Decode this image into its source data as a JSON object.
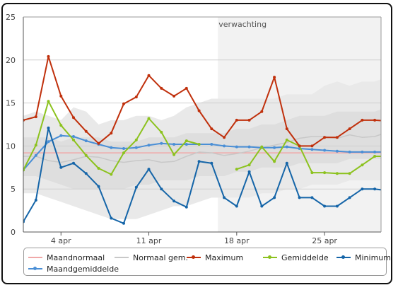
{
  "chart_data": {
    "type": "line",
    "title": "",
    "xlabel": "",
    "ylabel": "",
    "ylim": [
      0,
      25
    ],
    "yticks": [
      0,
      5,
      10,
      15,
      20,
      25
    ],
    "xlim": [
      1,
      29.5
    ],
    "xtick_labels": [
      {
        "x": 4,
        "label": "4 apr"
      },
      {
        "x": 11,
        "label": "11 apr"
      },
      {
        "x": 18,
        "label": "18 apr"
      },
      {
        "x": 25,
        "label": "25 apr"
      }
    ],
    "grid": true,
    "forecast": {
      "label": "verwachting",
      "from_x": 16.5
    },
    "x": [
      1,
      2,
      3,
      4,
      5,
      6,
      7,
      8,
      9,
      10,
      11,
      12,
      13,
      14,
      15,
      16,
      17,
      18,
      19,
      20,
      21,
      22,
      23,
      24,
      25,
      26,
      27,
      28,
      29,
      30
    ],
    "series": [
      {
        "name": "Maandnormaal",
        "color": "#f0a8a8",
        "marker": false,
        "values": [
          9.2,
          9.2,
          9.2,
          9.2,
          9.2,
          9.2,
          9.2,
          9.2,
          9.2,
          9.2,
          9.2,
          9.2,
          9.2,
          9.2,
          9.2,
          9.2,
          9.2,
          9.2,
          9.2,
          9.2,
          9.2,
          9.2,
          9.2,
          9.2,
          9.2,
          9.2,
          9.2,
          9.2,
          9.2,
          9.2
        ]
      },
      {
        "name": "Normaal gem.",
        "color": "#c8c8c8",
        "marker": false,
        "values": [
          8.8,
          8.8,
          8.3,
          8.1,
          8.4,
          8.8,
          8.7,
          8.3,
          8.1,
          8.3,
          8.4,
          8.1,
          8.2,
          8.8,
          9.3,
          9.2,
          8.9,
          9.1,
          9.4,
          9.8,
          10.1,
          10.4,
          10.9,
          11.1,
          11.1,
          10.9,
          11.3,
          11.0,
          11.1,
          11.6
        ]
      },
      {
        "name": "Maximum",
        "color": "#c0300c",
        "marker": true,
        "values": [
          13.0,
          13.4,
          20.4,
          15.8,
          13.3,
          11.7,
          10.3,
          11.5,
          14.9,
          15.7,
          18.2,
          16.7,
          15.8,
          16.7,
          14.1,
          12.0,
          11.0,
          13.0,
          13.0,
          14.0,
          18.0,
          12.0,
          10.0,
          10.0,
          11.0,
          11.0,
          12.0,
          13.0,
          13.0,
          12.9
        ]
      },
      {
        "name": "Gemiddelde",
        "color": "#8cc21e",
        "marker": true,
        "values": [
          7.2,
          10.1,
          15.2,
          12.4,
          10.7,
          8.9,
          7.4,
          6.7,
          9.2,
          10.7,
          13.2,
          11.6,
          9.0,
          10.6,
          10.2,
          null,
          null,
          7.3,
          7.8,
          9.9,
          8.2,
          10.7,
          10.0,
          6.9,
          6.9,
          6.8,
          6.8,
          7.8,
          8.8,
          8.8
        ]
      },
      {
        "name": "Minimum",
        "color": "#1565a8",
        "marker": true,
        "values": [
          1.2,
          3.7,
          12.1,
          7.5,
          8.0,
          6.8,
          5.3,
          1.6,
          1.0,
          5.2,
          7.3,
          5.0,
          3.6,
          2.9,
          8.2,
          8.0,
          4.0,
          3.0,
          7.0,
          3.0,
          4.0,
          8.0,
          4.0,
          4.0,
          3.0,
          3.0,
          4.0,
          5.0,
          5.0,
          4.8
        ]
      },
      {
        "name": "Maandgemiddelde",
        "color": "#4a8fd6",
        "marker": true,
        "values": [
          7.2,
          8.9,
          10.5,
          11.2,
          11.1,
          10.6,
          10.2,
          9.8,
          9.7,
          9.8,
          10.1,
          10.3,
          10.2,
          10.2,
          10.2,
          10.2,
          10.0,
          9.9,
          9.9,
          9.8,
          9.8,
          9.9,
          9.7,
          9.6,
          9.5,
          9.4,
          9.3,
          9.3,
          9.3,
          9.3
        ]
      }
    ],
    "bands": {
      "outer_lower": [
        4.5,
        4.5,
        4.0,
        3.5,
        3.0,
        2.5,
        2.0,
        1.5,
        1.5,
        1.5,
        2.0,
        2.5,
        3.0,
        3.0,
        3.5,
        4.0,
        4.0,
        4.0,
        4.0,
        4.5,
        4.5,
        5.0,
        5.0,
        5.5,
        5.5,
        5.5,
        6.0,
        6.0,
        6.0,
        6.0
      ],
      "inner_lower": [
        6.5,
        6.5,
        6.0,
        5.5,
        5.0,
        5.0,
        5.0,
        5.0,
        5.0,
        5.5,
        5.5,
        6.0,
        6.0,
        6.0,
        6.5,
        6.5,
        6.5,
        7.0,
        7.0,
        7.5,
        7.5,
        7.5,
        8.0,
        8.0,
        8.0,
        8.0,
        8.5,
        8.5,
        8.5,
        8.5
      ],
      "inner_upper": [
        11.0,
        11.0,
        11.0,
        10.5,
        11.0,
        11.0,
        11.0,
        10.5,
        10.5,
        10.5,
        11.0,
        11.0,
        11.0,
        11.5,
        11.5,
        11.5,
        11.5,
        12.0,
        12.0,
        12.5,
        12.5,
        13.0,
        13.5,
        13.5,
        13.5,
        14.0,
        14.0,
        14.0,
        14.0,
        14.5
      ],
      "outer_upper": [
        13.5,
        14.0,
        13.5,
        13.0,
        14.5,
        14.0,
        12.5,
        13.0,
        13.0,
        13.5,
        13.5,
        13.0,
        13.5,
        14.5,
        15.0,
        15.5,
        15.5,
        15.5,
        15.5,
        15.5,
        15.5,
        16.0,
        16.0,
        16.0,
        17.0,
        17.5,
        17.0,
        17.5,
        17.5,
        18.0
      ]
    }
  }
}
